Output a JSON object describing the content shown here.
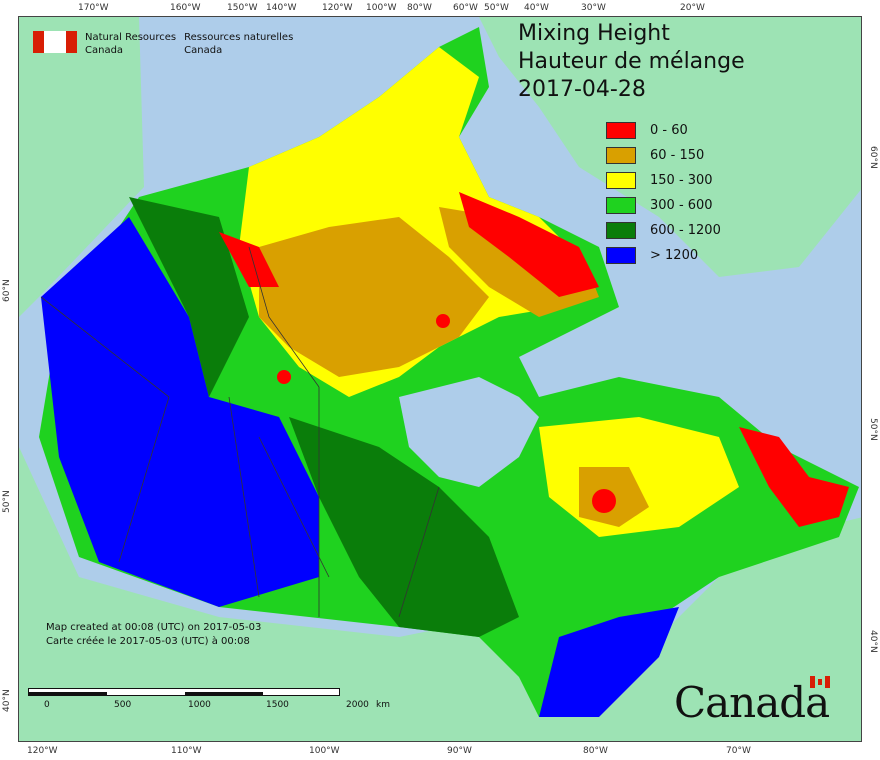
{
  "header": {
    "agency_en_1": "Natural Resources",
    "agency_en_2": "Canada",
    "agency_fr_1": "Ressources naturelles",
    "agency_fr_2": "Canada"
  },
  "title": {
    "line1": "Mixing Height",
    "line2": "Hauteur de mélange",
    "date": "2017-04-28"
  },
  "legend": [
    {
      "label": "0 - 60",
      "color": "#ff0000"
    },
    {
      "label": "60 - 150",
      "color": "#d9a000"
    },
    {
      "label": "150 - 300",
      "color": "#ffff00"
    },
    {
      "label": "300 - 600",
      "color": "#1fd21f"
    },
    {
      "label": "600 - 1200",
      "color": "#0a7d0a"
    },
    {
      "label": "> 1200",
      "color": "#0000ff"
    }
  ],
  "created": {
    "en": "Map created at 00:08 (UTC) on 2017-05-03",
    "fr": "Carte créée le 2017-05-03 (UTC) à 00:08"
  },
  "scale": {
    "labels": [
      "0",
      "500",
      "1000",
      "1500",
      "2000"
    ],
    "unit": "km"
  },
  "wordmark": "Canada",
  "colors": {
    "ocean": "#aecdea",
    "land_outside": "#9de3b4",
    "greenland": "#9de3b4"
  },
  "ticks": {
    "top": [
      "170°W",
      "160°W",
      "150°W",
      "140°W",
      "120°W",
      "100°W",
      "80°W",
      "60°W",
      "50°W",
      "40°W",
      "30°W",
      "20°W"
    ],
    "bottom": [
      "120°W",
      "110°W",
      "100°W",
      "90°W",
      "80°W",
      "70°W"
    ],
    "left": [
      "60°N",
      "50°N",
      "40°N"
    ],
    "right": [
      "60°N",
      "50°N",
      "40°N"
    ]
  }
}
